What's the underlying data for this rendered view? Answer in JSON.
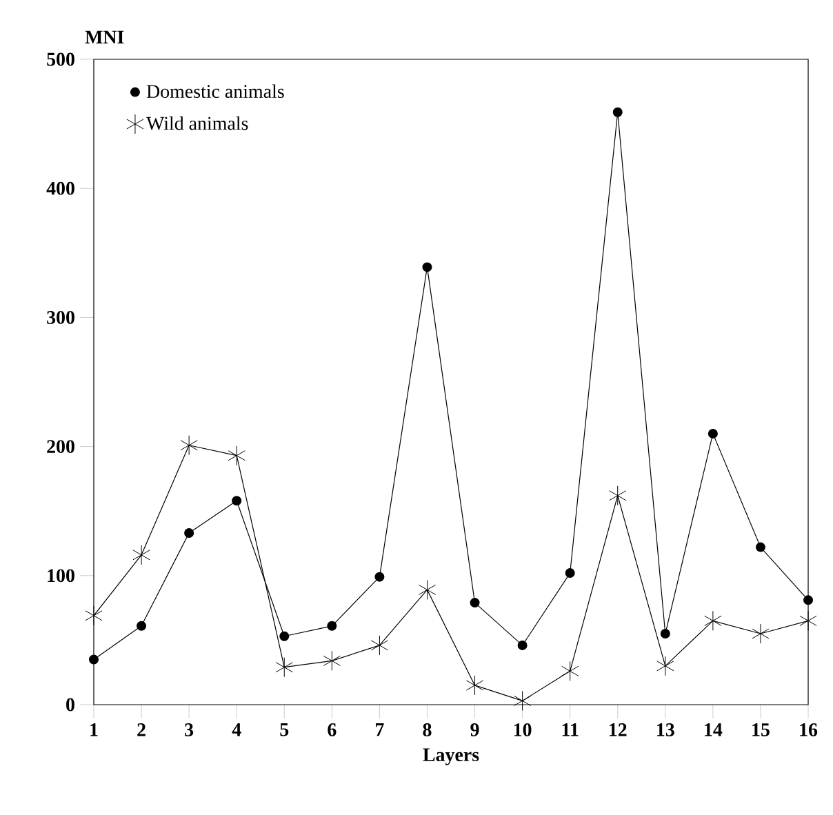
{
  "chart_data": {
    "type": "line",
    "xlabel": "Layers",
    "ylabel": "MNI",
    "x": [
      1,
      2,
      3,
      4,
      5,
      6,
      7,
      8,
      9,
      10,
      11,
      12,
      13,
      14,
      15,
      16
    ],
    "xlim": [
      1,
      16
    ],
    "xticks": [
      1,
      2,
      3,
      4,
      5,
      6,
      7,
      8,
      9,
      10,
      11,
      12,
      13,
      14,
      15,
      16
    ],
    "ylim": [
      0,
      500
    ],
    "yticks": [
      0,
      100,
      200,
      300,
      400,
      500
    ],
    "legend": "top left",
    "line_style": "solid",
    "series": [
      {
        "name": "Domestic animals",
        "color": "#000000",
        "marker": "circle",
        "values": [
          35,
          61,
          133,
          158,
          53,
          61,
          99,
          339,
          79,
          46,
          102,
          459,
          55,
          210,
          122,
          81
        ]
      },
      {
        "name": "Wild animals",
        "color": "#000000",
        "marker": "cross",
        "values": [
          69,
          116,
          201,
          193,
          29,
          34,
          46,
          89,
          15,
          3,
          26,
          162,
          30,
          65,
          55,
          65
        ]
      }
    ]
  }
}
